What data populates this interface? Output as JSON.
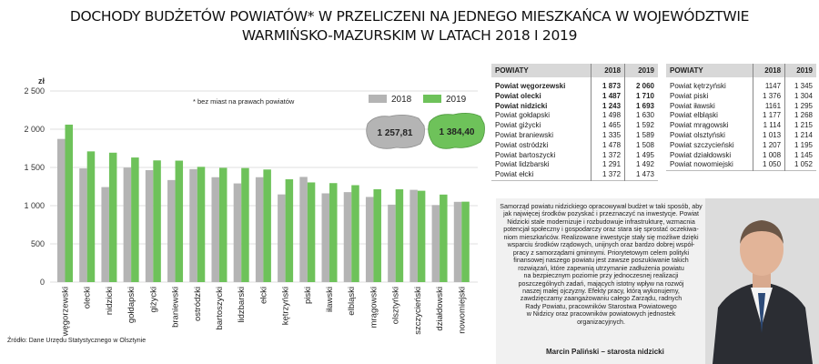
{
  "title": {
    "line1": "DOCHODY BUDŻETÓW POWIATÓW*  W PRZELICZENI NA JEDNEGO MIESZKAŃCA W WOJEWÓDZTWIE",
    "line2": "WARMIŃSKO-MAZURSKIM  W LATACH 2018 I 2019"
  },
  "footnote": "* bez miast na prawach powiatów",
  "source": "Źródło: Dane Urzędu Statystycznego w Olsztynie",
  "colors": {
    "y2018": "#b4b4b4",
    "y2019": "#6ec25a"
  },
  "chart_data": {
    "type": "bar",
    "ylabel": "zł",
    "ylim": [
      0,
      2500
    ],
    "yticks": [
      "2 500",
      "2 000",
      "1 500",
      "1 000",
      "500",
      "0"
    ],
    "grid": true,
    "legend": "top-right",
    "categories": [
      "węgorzewski",
      "olecki",
      "nidzicki",
      "gołdapski",
      "giżycki",
      "braniewski",
      "ostródzki",
      "bartoszycki",
      "lidzbarski",
      "ełcki",
      "kętrzyński",
      "piski",
      "iławski",
      "elbląski",
      "mrągowski",
      "olsztyński",
      "szczycieński",
      "działdowski",
      "nowomiejski"
    ],
    "series": [
      {
        "name": "2018",
        "values": [
          1873,
          1487,
          1243,
          1498,
          1465,
          1335,
          1478,
          1372,
          1291,
          1372,
          1147,
          1376,
          1161,
          1177,
          1114,
          1013,
          1207,
          1008,
          1050
        ]
      },
      {
        "name": "2019",
        "values": [
          2060,
          1710,
          1693,
          1630,
          1592,
          1589,
          1508,
          1495,
          1492,
          1473,
          1345,
          1304,
          1295,
          1268,
          1215,
          1214,
          1195,
          1145,
          1052
        ]
      }
    ],
    "map_values": {
      "y2018": "1 257,81",
      "y2019": "1 384,40"
    }
  },
  "table1": {
    "header": [
      "POWIATY",
      "2018",
      "2019"
    ],
    "rows": [
      {
        "name": "Powiat węgorzewski",
        "v2018": "1 873",
        "v2019": "2 060",
        "bold": true
      },
      {
        "name": "Powiat olecki",
        "v2018": "1 487",
        "v2019": "1 710",
        "bold": true
      },
      {
        "name": "Powiat nidzicki",
        "v2018": "1 243",
        "v2019": "1 693",
        "bold": true
      },
      {
        "name": "Powiat gołdapski",
        "v2018": "1 498",
        "v2019": "1 630",
        "bold": false
      },
      {
        "name": "Powiat giżycki",
        "v2018": "1 465",
        "v2019": "1 592",
        "bold": false
      },
      {
        "name": "Powiat braniewski",
        "v2018": "1 335",
        "v2019": "1 589",
        "bold": false
      },
      {
        "name": "Powiat ostródzki",
        "v2018": "1 478",
        "v2019": "1 508",
        "bold": false
      },
      {
        "name": "Powiat bartoszycki",
        "v2018": "1 372",
        "v2019": "1 495",
        "bold": false
      },
      {
        "name": "Powiat lidzbarski",
        "v2018": "1 291",
        "v2019": "1 492",
        "bold": false
      },
      {
        "name": "Powiat ełcki",
        "v2018": "1 372",
        "v2019": "1 473",
        "bold": false
      }
    ]
  },
  "table2": {
    "header": [
      "POWIATY",
      "2018",
      "2019"
    ],
    "rows": [
      {
        "name": "Powiat kętrzyński",
        "v2018": "1147",
        "v2019": "1 345"
      },
      {
        "name": "Powiat piski",
        "v2018": "1 376",
        "v2019": "1 304"
      },
      {
        "name": "Powiat iławski",
        "v2018": "1161",
        "v2019": "1 295"
      },
      {
        "name": "Powiat elbląski",
        "v2018": "1 177",
        "v2019": "1 268"
      },
      {
        "name": "Powiat mrągowski",
        "v2018": "1 114",
        "v2019": "1 215"
      },
      {
        "name": "Powiat olsztyński",
        "v2018": "1 013",
        "v2019": "1 214"
      },
      {
        "name": "Powiat szczycieński",
        "v2018": "1 207",
        "v2019": "1 195"
      },
      {
        "name": "Powiat działdowski",
        "v2018": "1 008",
        "v2019": "1 145"
      },
      {
        "name": "Powiat nowomiejski",
        "v2018": "1 050",
        "v2019": "1 052"
      }
    ]
  },
  "quote": {
    "lines": [
      "Samorząd powiatu nidzickiego opracowywał budżet w taki sposób, aby",
      "jak najwięcej środków pozyskać i przeznaczyć na inwestycje. Powiat",
      "Nidzicki stale modernizuje i rozbudowuje infrastrukturę, wzmacnia",
      "potencjał społeczny i gospodarczy oraz stara się sprostać oczekiwa-",
      "niom mieszkańców. Realizowane inwestycje stały się możliwe dzięki",
      "wsparciu środków rządowych, unijnych oraz bardzo dobrej współ-",
      "pracy z samorządami gminnymi. Priorytetowym celem polityki",
      "finansowej naszego powiatu jest zawsze poszukiwanie takich",
      "rozwiązań, które zapewnią utrzymanie zadłużenia powiatu",
      "na bezpiecznym poziomie przy jednoczesnej realizacji",
      "poszczególnych zadań, mających istotny wpływ na rozwój",
      "naszej małej ojczyzny. Efekty pracy, którą wykonujemy,",
      "zawdzięczamy zaangażowaniu całego Zarządu, radnych",
      "Rady Powiatu, pracowników Starostwa Powiatowego",
      "w Nidzicy oraz pracowników powiatowych jednostek",
      "organizacyjnych."
    ],
    "signature": "Marcin Paliński – starosta nidzicki"
  }
}
